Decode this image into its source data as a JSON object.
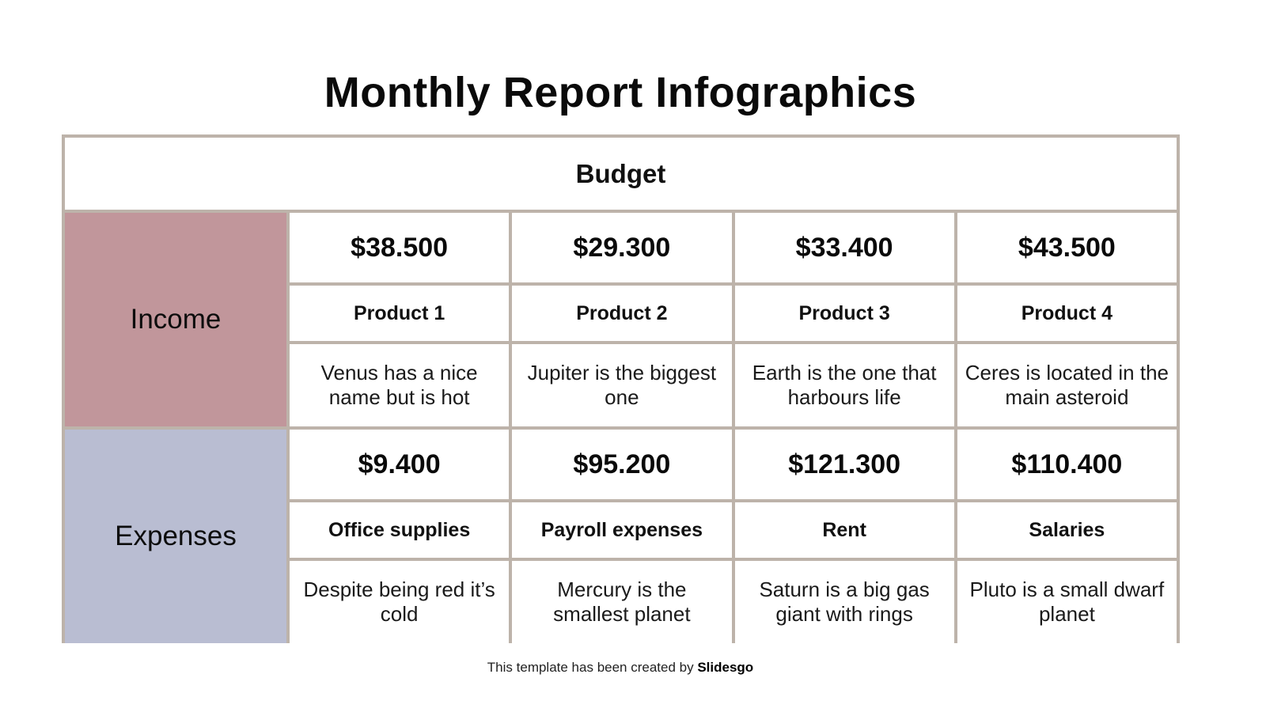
{
  "title": "Monthly Report Infographics",
  "table": {
    "header": "Budget",
    "colors": {
      "border": "#bdb3aa",
      "income": "#c1969b",
      "expenses": "#b9bdd2"
    },
    "income": {
      "label": "Income",
      "items": [
        {
          "amount": "$38.500",
          "name": "Product 1",
          "desc": "Venus has a nice name but is hot"
        },
        {
          "amount": "$29.300",
          "name": "Product 2",
          "desc": "Jupiter is the biggest one"
        },
        {
          "amount": "$33.400",
          "name": "Product 3",
          "desc": "Earth is the one that harbours life"
        },
        {
          "amount": "$43.500",
          "name": "Product 4",
          "desc": "Ceres is located in the main asteroid"
        }
      ]
    },
    "expenses": {
      "label": "Expenses",
      "items": [
        {
          "amount": "$9.400",
          "name": "Office supplies",
          "desc": "Despite being red it’s cold"
        },
        {
          "amount": "$95.200",
          "name": "Payroll expenses",
          "desc": "Mercury is the smallest planet"
        },
        {
          "amount": "$121.300",
          "name": "Rent",
          "desc": "Saturn is a big gas giant with rings"
        },
        {
          "amount": "$110.400",
          "name": "Salaries",
          "desc": "Pluto is a small dwarf planet"
        }
      ]
    }
  },
  "footer": {
    "text": "This template has been created by ",
    "brand": "Slidesgo"
  }
}
